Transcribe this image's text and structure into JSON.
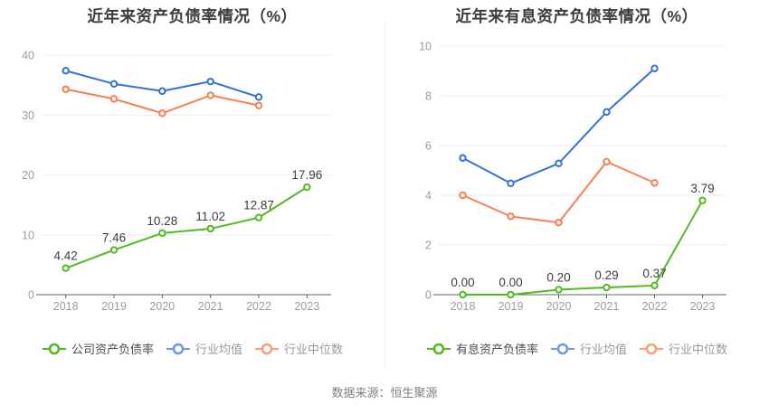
{
  "page": {
    "source_text": "数据来源：恒生聚源"
  },
  "colors": {
    "company_green": "#4FBC1F",
    "industry_avg_blue": "#3570DB",
    "industry_median_orange": "#F97E52",
    "gridline": "#E9EDF4",
    "axis_line": "#666666",
    "axis_label": "#9C9C9C",
    "data_label": "#3D3D3D",
    "title": "#3D3D3D"
  },
  "chart_data": [
    {
      "type": "line",
      "title": "近年来资产负债率情况（%）",
      "categories": [
        "2018",
        "2019",
        "2020",
        "2021",
        "2022",
        "2023"
      ],
      "ylim": [
        0,
        40
      ],
      "y_ticks": [
        0,
        10,
        20,
        30,
        40
      ],
      "grid": true,
      "legend_position": "bottom",
      "series": [
        {
          "name": "公司资产负债率",
          "color": "#4FBC1F",
          "legend_color": "#4FBC1F",
          "legend_text_color": "#4D4D4D",
          "values": [
            4.42,
            7.46,
            10.28,
            11.02,
            12.87,
            17.96
          ],
          "data_labels": [
            "4.42",
            "7.46",
            "10.28",
            "11.02",
            "12.87",
            "17.96"
          ]
        },
        {
          "name": "行业均值",
          "color": "#3570DB",
          "legend_color": "#6F9AE8",
          "legend_text_color": "#999999",
          "values": [
            37.4,
            35.2,
            34.0,
            35.6,
            33.0
          ]
        },
        {
          "name": "行业中位数",
          "color": "#F97E52",
          "legend_color": "#FA9E7E",
          "legend_text_color": "#999999",
          "values": [
            34.3,
            32.7,
            30.3,
            33.3,
            31.6
          ]
        }
      ]
    },
    {
      "type": "line",
      "title": "近年来有息资产负债率情况（%）",
      "categories": [
        "2018",
        "2019",
        "2020",
        "2021",
        "2022",
        "2023"
      ],
      "ylim": [
        0,
        10
      ],
      "y_ticks": [
        0,
        2,
        4,
        6,
        8,
        10
      ],
      "grid": true,
      "legend_position": "bottom",
      "series": [
        {
          "name": "有息资产负债率",
          "color": "#4FBC1F",
          "legend_color": "#4FBC1F",
          "legend_text_color": "#4D4D4D",
          "values": [
            0.0,
            0.0,
            0.2,
            0.29,
            0.37,
            3.79
          ],
          "data_labels": [
            "0.00",
            "0.00",
            "0.20",
            "0.29",
            "0.37",
            "3.79"
          ]
        },
        {
          "name": "行业均值",
          "color": "#3570DB",
          "legend_color": "#6F9AE8",
          "legend_text_color": "#999999",
          "values": [
            5.5,
            4.48,
            5.28,
            7.35,
            9.1
          ]
        },
        {
          "name": "行业中位数",
          "color": "#F97E52",
          "legend_color": "#FA9E7E",
          "legend_text_color": "#999999",
          "values": [
            4.0,
            3.15,
            2.9,
            5.35,
            4.5
          ]
        }
      ]
    }
  ]
}
